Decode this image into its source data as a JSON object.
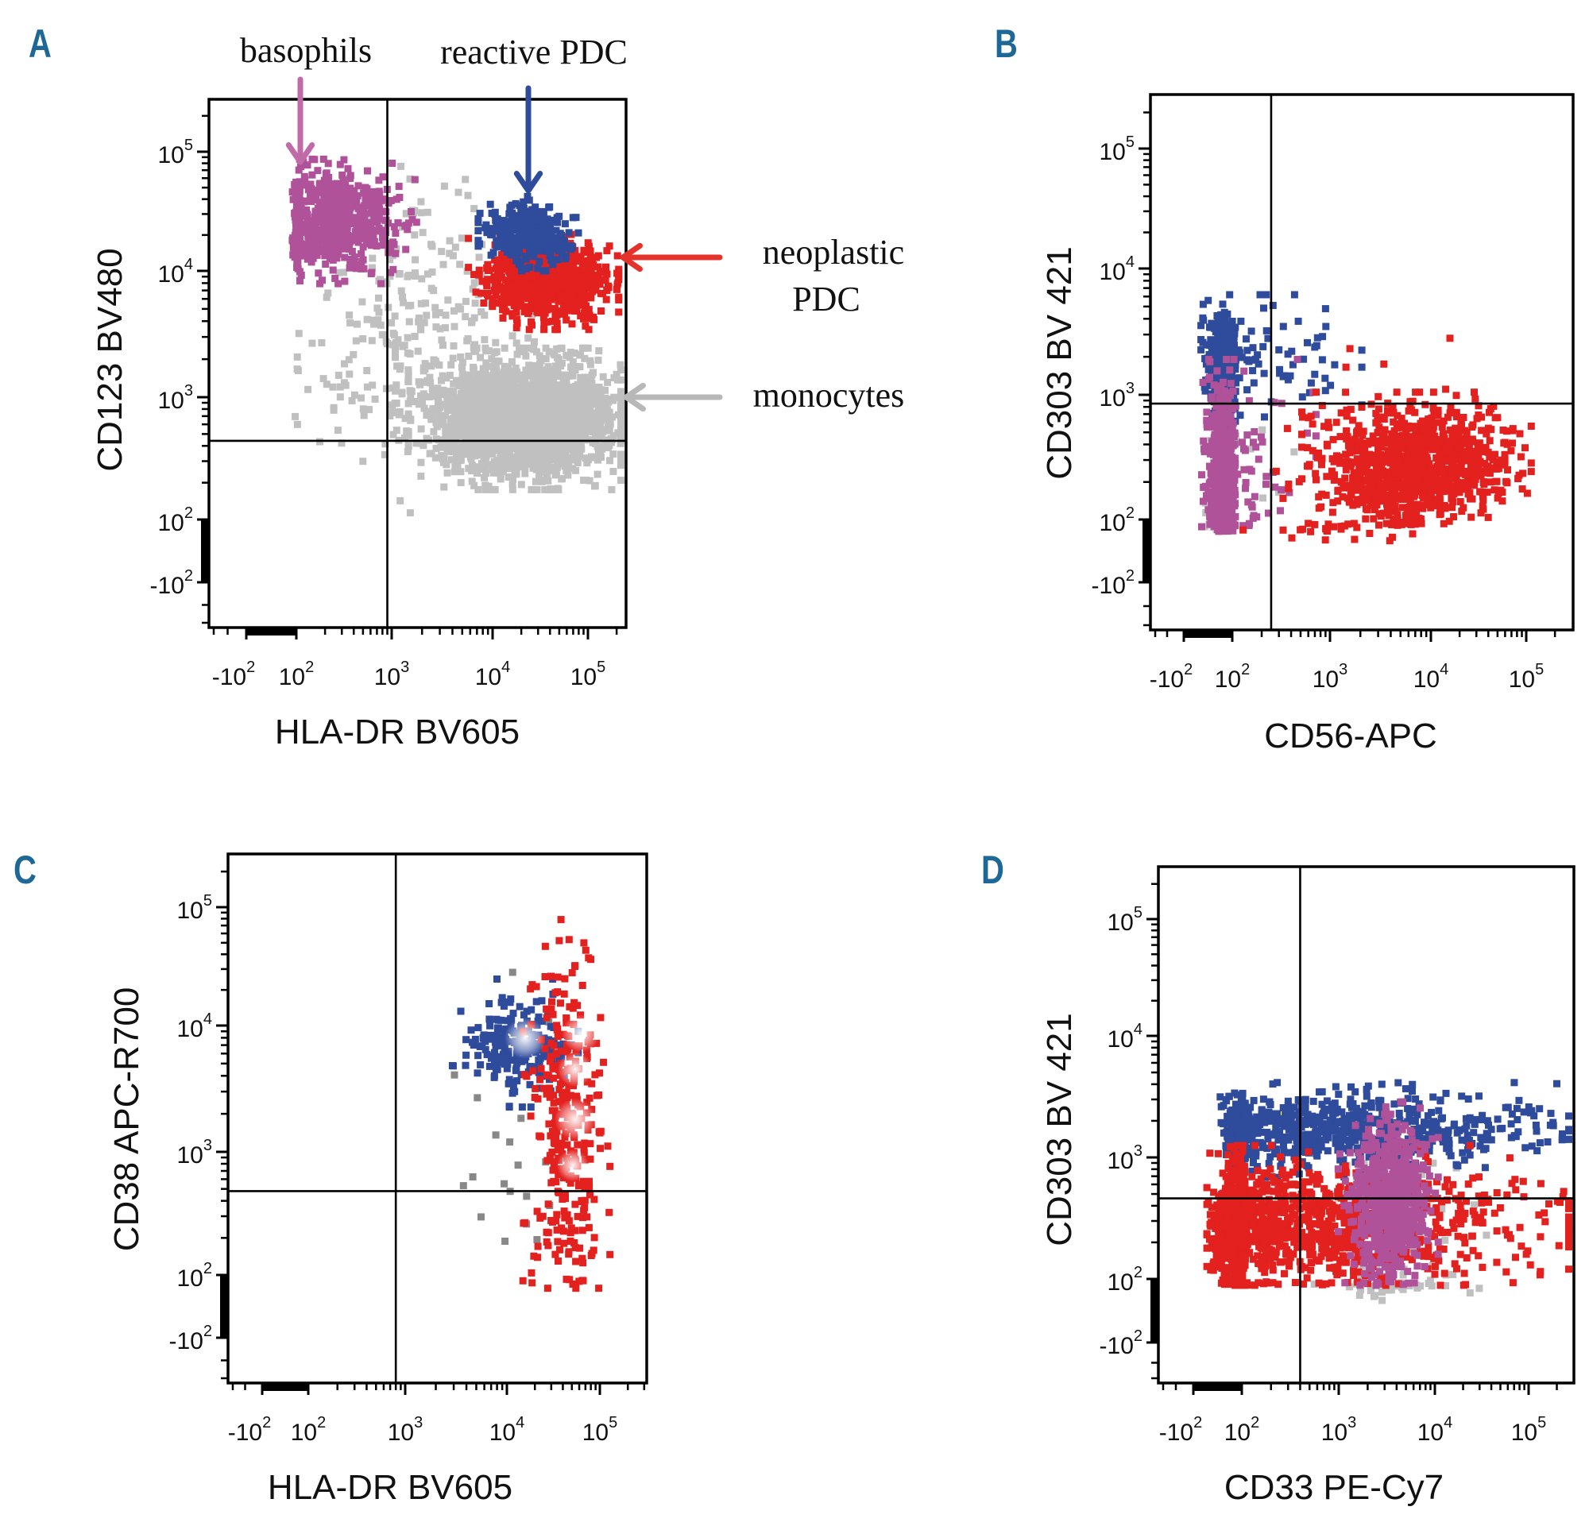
{
  "colors": {
    "basophils": "#b0529a",
    "reactive_pdc": "#2f4b9c",
    "neoplastic_pdc": "#e3211f",
    "other": "#c0c0c0",
    "panel_letter": "#1d6896",
    "arrow_basophils": "#c06aa8",
    "arrow_reactive": "#2f4b9c",
    "arrow_neoplastic": "#e3332a",
    "arrow_monocytes": "#b8b8b8"
  },
  "chart_data": [
    {
      "panel": "A",
      "type": "scatter",
      "scale": "biexponential",
      "grid": false,
      "xlabel": "HLA-DR BV605",
      "ylabel": "CD123 BV480",
      "xlim": [
        -300,
        250000
      ],
      "ylim": [
        -400,
        250000
      ],
      "x_ticks": [
        {
          "value": -100,
          "base": "-10",
          "sup": "2"
        },
        {
          "value": 100,
          "base": "10",
          "sup": "2"
        },
        {
          "value": 1000,
          "base": "10",
          "sup": "3"
        },
        {
          "value": 10000,
          "base": "10",
          "sup": "4"
        },
        {
          "value": 100000,
          "base": "10",
          "sup": "5"
        }
      ],
      "y_ticks": [
        {
          "value": -100,
          "base": "-10",
          "sup": "2"
        },
        {
          "value": 100,
          "base": "10",
          "sup": "2"
        },
        {
          "value": 1000,
          "base": "10",
          "sup": "3"
        },
        {
          "value": 10000,
          "base": "10",
          "sup": "4"
        },
        {
          "value": 100000,
          "base": "10",
          "sup": "5"
        }
      ],
      "quadrant_gates": {
        "x": 900,
        "y": 440
      },
      "populations": [
        {
          "color": "#c0c0c0",
          "center": [
            1500,
            3000
          ],
          "spread_log": [
            0.6,
            0.55
          ],
          "count": 300
        },
        {
          "name": "monocytes",
          "color": "#c0c0c0",
          "center": [
            20000,
            700
          ],
          "spread_log": [
            0.45,
            0.22
          ],
          "count": 2500
        },
        {
          "name": "basophils",
          "color": "#b0529a",
          "center": [
            200,
            28000
          ],
          "spread_log": [
            0.35,
            0.2
          ],
          "count": 700
        },
        {
          "name": "neoplastic PDC",
          "color": "#e3211f",
          "center": [
            32000,
            9000
          ],
          "spread_log": [
            0.3,
            0.15
          ],
          "count": 900
        },
        {
          "name": "reactive PDC",
          "color": "#2f4b9c",
          "center": [
            22000,
            22000
          ],
          "spread_log": [
            0.2,
            0.12
          ],
          "count": 380
        }
      ],
      "annotations": [
        {
          "text": "basophils",
          "arrow_color": "#c06aa8"
        },
        {
          "text": "reactive PDC",
          "arrow_color": "#2f4b9c"
        },
        {
          "text_line1": "neoplastic",
          "text_line2": "PDC",
          "arrow_color": "#e3332a"
        },
        {
          "text": "monocytes",
          "arrow_color": "#b8b8b8"
        }
      ]
    },
    {
      "panel": "B",
      "type": "scatter",
      "scale": "biexponential",
      "grid": false,
      "xlabel": "CD56-APC",
      "ylabel": "CD303 BV 421",
      "xlim": [
        -300,
        250000
      ],
      "ylim": [
        -400,
        250000
      ],
      "x_ticks": [
        {
          "value": -100,
          "base": "-10",
          "sup": "2"
        },
        {
          "value": 100,
          "base": "10",
          "sup": "2"
        },
        {
          "value": 1000,
          "base": "10",
          "sup": "3"
        },
        {
          "value": 10000,
          "base": "10",
          "sup": "4"
        },
        {
          "value": 100000,
          "base": "10",
          "sup": "5"
        }
      ],
      "y_ticks": [
        {
          "value": -100,
          "base": "-10",
          "sup": "2"
        },
        {
          "value": 100,
          "base": "10",
          "sup": "2"
        },
        {
          "value": 1000,
          "base": "10",
          "sup": "3"
        },
        {
          "value": 10000,
          "base": "10",
          "sup": "4"
        },
        {
          "value": 100000,
          "base": "10",
          "sup": "5"
        }
      ],
      "quadrant_gates": {
        "x": 250,
        "y": 850
      },
      "populations": [
        {
          "color": "#c0c0c0",
          "center": [
            50,
            200
          ],
          "spread_log": [
            0.8,
            0.4
          ],
          "count": 80
        },
        {
          "color": "#2f4b9c",
          "center": [
            60,
            2000
          ],
          "spread_log": [
            0.8,
            0.2
          ],
          "count": 450
        },
        {
          "color": "#b0529a",
          "center": [
            50,
            250
          ],
          "spread_log": [
            0.7,
            0.35
          ],
          "count": 550
        },
        {
          "color": "#e3211f",
          "center": [
            7000,
            300
          ],
          "spread_log": [
            0.45,
            0.22
          ],
          "count": 1000
        },
        {
          "color": "#e3211f",
          "center": [
            2000,
            150
          ],
          "spread_log": [
            0.5,
            0.5
          ],
          "count": 90
        }
      ]
    },
    {
      "panel": "C",
      "type": "scatter",
      "scale": "biexponential",
      "grid": false,
      "xlabel": "HLA-DR BV605",
      "ylabel": "CD38 APC-R700",
      "xlim": [
        -300,
        250000
      ],
      "ylim": [
        -400,
        250000
      ],
      "x_ticks": [
        {
          "value": -100,
          "base": "-10",
          "sup": "2"
        },
        {
          "value": 100,
          "base": "10",
          "sup": "2"
        },
        {
          "value": 1000,
          "base": "10",
          "sup": "3"
        },
        {
          "value": 10000,
          "base": "10",
          "sup": "4"
        },
        {
          "value": 100000,
          "base": "10",
          "sup": "5"
        }
      ],
      "y_ticks": [
        {
          "value": -100,
          "base": "-10",
          "sup": "2"
        },
        {
          "value": 100,
          "base": "10",
          "sup": "2"
        },
        {
          "value": 1000,
          "base": "10",
          "sup": "3"
        },
        {
          "value": 10000,
          "base": "10",
          "sup": "4"
        },
        {
          "value": 100000,
          "base": "10",
          "sup": "5"
        }
      ],
      "quadrant_gates": {
        "x": 800,
        "y": 480
      },
      "populations": [
        {
          "color": "#888888",
          "center": [
            15000,
            1000
          ],
          "spread_log": [
            0.35,
            0.7
          ],
          "count": 25
        },
        {
          "color": "#2f4b9c",
          "center": [
            12000,
            8000
          ],
          "spread_log": [
            0.25,
            0.2
          ],
          "count": 200
        },
        {
          "color": "#e3211f",
          "center": [
            40000,
            1600
          ],
          "spread_log": [
            0.18,
            0.7
          ],
          "count": 320
        }
      ]
    },
    {
      "panel": "D",
      "type": "scatter",
      "scale": "biexponential",
      "grid": false,
      "xlabel": "CD33 PE-Cy7",
      "ylabel": "CD303 BV 421",
      "xlim": [
        -300,
        250000
      ],
      "ylim": [
        -400,
        250000
      ],
      "x_ticks": [
        {
          "value": -100,
          "base": "-10",
          "sup": "2"
        },
        {
          "value": 100,
          "base": "10",
          "sup": "2"
        },
        {
          "value": 1000,
          "base": "10",
          "sup": "3"
        },
        {
          "value": 10000,
          "base": "10",
          "sup": "4"
        },
        {
          "value": 100000,
          "base": "10",
          "sup": "5"
        }
      ],
      "y_ticks": [
        {
          "value": -100,
          "base": "-10",
          "sup": "2"
        },
        {
          "value": 100,
          "base": "10",
          "sup": "2"
        },
        {
          "value": 1000,
          "base": "10",
          "sup": "3"
        },
        {
          "value": 10000,
          "base": "10",
          "sup": "4"
        },
        {
          "value": 100000,
          "base": "10",
          "sup": "5"
        }
      ],
      "quadrant_gates": {
        "x": 400,
        "y": 460
      },
      "populations": [
        {
          "color": "#c0c0c0",
          "center": [
            4000,
            150
          ],
          "spread_log": [
            0.35,
            0.5
          ],
          "count": 90
        },
        {
          "color": "#2f4b9c",
          "center": [
            600,
            1800
          ],
          "spread_log": [
            1.1,
            0.15
          ],
          "count": 800
        },
        {
          "color": "#e3211f",
          "center": [
            160,
            300
          ],
          "spread_log": [
            1.3,
            0.25
          ],
          "count": 1500
        },
        {
          "color": "#b0529a",
          "center": [
            3000,
            450
          ],
          "spread_log": [
            0.2,
            0.32
          ],
          "count": 650
        }
      ]
    }
  ],
  "panels": {
    "A": {
      "letter": "A"
    },
    "B": {
      "letter": "B"
    },
    "C": {
      "letter": "C"
    },
    "D": {
      "letter": "D"
    }
  }
}
